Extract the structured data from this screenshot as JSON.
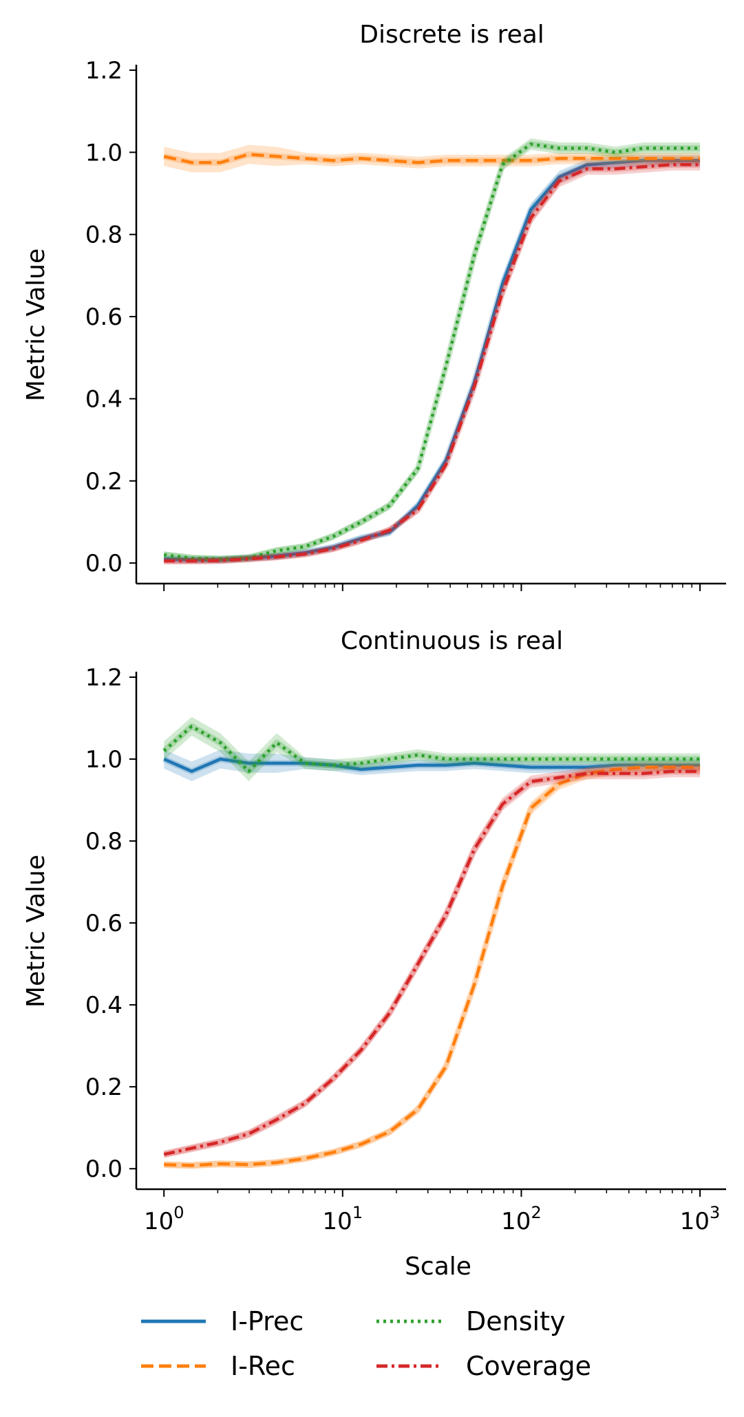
{
  "chart_data": [
    {
      "type": "line",
      "title": "Discrete is real",
      "xlabel": "",
      "ylabel": "Metric Value",
      "xscale": "log",
      "xlim": [
        0.7,
        1400
      ],
      "ylim": [
        -0.05,
        1.21
      ],
      "yticks": [
        "0.0",
        "0.2",
        "0.4",
        "0.6",
        "0.8",
        "1.0",
        "1.2"
      ],
      "xtick_labels_visible": false,
      "x": [
        1,
        1.43,
        2.07,
        2.98,
        4.28,
        6.16,
        8.86,
        12.7,
        18.3,
        26.4,
        37.9,
        54.6,
        78.5,
        113,
        163,
        234,
        336,
        483,
        695,
        1000
      ],
      "series": [
        {
          "name": "I-Prec",
          "color": "#1f77b4",
          "style": "solid",
          "values": [
            0.01,
            0.008,
            0.008,
            0.012,
            0.017,
            0.025,
            0.038,
            0.06,
            0.075,
            0.14,
            0.25,
            0.44,
            0.68,
            0.86,
            0.94,
            0.97,
            0.975,
            0.98,
            0.98,
            0.98
          ]
        },
        {
          "name": "I-Rec",
          "color": "#ff7f0e",
          "style": "dashed",
          "values": [
            0.99,
            0.975,
            0.975,
            0.995,
            0.99,
            0.985,
            0.98,
            0.985,
            0.98,
            0.975,
            0.98,
            0.98,
            0.98,
            0.98,
            0.985,
            0.985,
            0.985,
            0.985,
            0.985,
            0.985
          ]
        },
        {
          "name": "Density",
          "color": "#2ca02c",
          "style": "dotted",
          "values": [
            0.02,
            0.012,
            0.01,
            0.013,
            0.03,
            0.04,
            0.065,
            0.1,
            0.14,
            0.23,
            0.48,
            0.75,
            0.97,
            1.02,
            1.01,
            1.01,
            1.0,
            1.01,
            1.01,
            1.01
          ]
        },
        {
          "name": "Coverage",
          "color": "#d62728",
          "style": "dashdot",
          "values": [
            0.005,
            0.005,
            0.006,
            0.01,
            0.015,
            0.022,
            0.035,
            0.055,
            0.08,
            0.13,
            0.24,
            0.43,
            0.66,
            0.84,
            0.93,
            0.96,
            0.96,
            0.965,
            0.97,
            0.97
          ]
        }
      ]
    },
    {
      "type": "line",
      "title": "Continuous is real",
      "xlabel": "Scale",
      "ylabel": "Metric Value",
      "xscale": "log",
      "xlim": [
        0.7,
        1400
      ],
      "ylim": [
        -0.05,
        1.21
      ],
      "yticks": [
        "0.0",
        "0.2",
        "0.4",
        "0.6",
        "0.8",
        "1.0",
        "1.2"
      ],
      "xtick_labels_visible": true,
      "x": [
        1,
        1.43,
        2.07,
        2.98,
        4.28,
        6.16,
        8.86,
        12.7,
        18.3,
        26.4,
        37.9,
        54.6,
        78.5,
        113,
        163,
        234,
        336,
        483,
        695,
        1000
      ],
      "series": [
        {
          "name": "I-Prec",
          "color": "#1f77b4",
          "style": "solid",
          "values": [
            1.0,
            0.97,
            1.0,
            0.99,
            0.99,
            0.99,
            0.985,
            0.975,
            0.98,
            0.985,
            0.985,
            0.99,
            0.985,
            0.98,
            0.98,
            0.98,
            0.985,
            0.985,
            0.985,
            0.985
          ]
        },
        {
          "name": "I-Rec",
          "color": "#ff7f0e",
          "style": "dashed",
          "values": [
            0.01,
            0.008,
            0.012,
            0.01,
            0.015,
            0.025,
            0.04,
            0.06,
            0.09,
            0.145,
            0.25,
            0.45,
            0.69,
            0.88,
            0.94,
            0.965,
            0.975,
            0.98,
            0.98,
            0.98
          ]
        },
        {
          "name": "Density",
          "color": "#2ca02c",
          "style": "dotted",
          "values": [
            1.02,
            1.08,
            1.04,
            0.97,
            1.04,
            0.99,
            0.985,
            0.99,
            1.0,
            1.01,
            1.0,
            1.0,
            1.0,
            1.0,
            1.0,
            1.0,
            1.0,
            1.0,
            1.0,
            1.0
          ]
        },
        {
          "name": "Coverage",
          "color": "#d62728",
          "style": "dashdot",
          "values": [
            0.035,
            0.05,
            0.065,
            0.085,
            0.12,
            0.16,
            0.22,
            0.29,
            0.38,
            0.5,
            0.62,
            0.78,
            0.89,
            0.945,
            0.955,
            0.965,
            0.965,
            0.965,
            0.97,
            0.97
          ]
        }
      ]
    }
  ],
  "xtick_labels": [
    {
      "base": "10",
      "exp": "0"
    },
    {
      "base": "10",
      "exp": "1"
    },
    {
      "base": "10",
      "exp": "2"
    },
    {
      "base": "10",
      "exp": "3"
    }
  ],
  "legend": {
    "placement": "bottom",
    "entries": [
      {
        "label": "I-Prec",
        "color": "#1f77b4",
        "style": "solid"
      },
      {
        "label": "I-Rec",
        "color": "#ff7f0e",
        "style": "dashed"
      },
      {
        "label": "Density",
        "color": "#2ca02c",
        "style": "dotted"
      },
      {
        "label": "Coverage",
        "color": "#d62728",
        "style": "dashdot"
      }
    ]
  }
}
